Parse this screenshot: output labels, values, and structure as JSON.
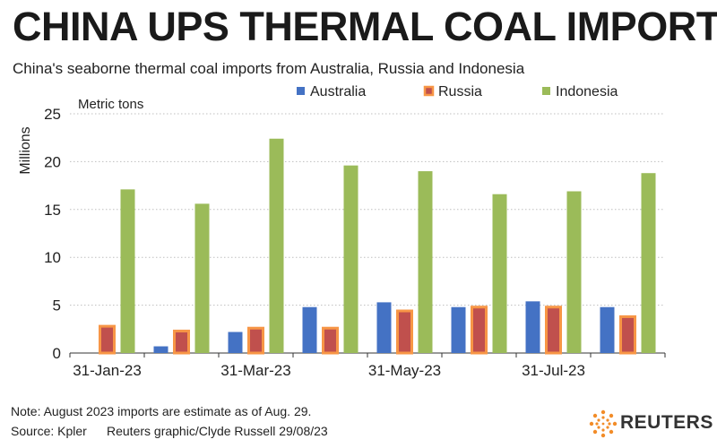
{
  "header": {
    "title": "CHINA UPS THERMAL COAL IMPORTS",
    "subtitle": "China's seaborne thermal coal imports from Australia, Russia and Indonesia"
  },
  "chart_data": {
    "type": "bar",
    "categories": [
      "Jan-23",
      "Feb-23",
      "Mar-23",
      "Apr-23",
      "May-23",
      "Jun-23",
      "Jul-23",
      "Aug-23"
    ],
    "x_tick_labels": [
      "31-Jan-23",
      "31-Mar-23",
      "31-May-23",
      "31-Jul-23"
    ],
    "series": [
      {
        "name": "Australia",
        "color": "#4472c4",
        "values": [
          0,
          0.7,
          2.2,
          4.8,
          5.3,
          4.8,
          5.4,
          4.8
        ]
      },
      {
        "name": "Russia",
        "color": "#c0504d",
        "edge": "#f79646",
        "values": [
          2.8,
          2.3,
          2.6,
          2.6,
          4.4,
          4.8,
          4.8,
          3.8
        ]
      },
      {
        "name": "Indonesia",
        "color": "#9bbb59",
        "values": [
          17.1,
          15.6,
          22.4,
          19.6,
          19.0,
          16.6,
          16.9,
          18.8
        ]
      }
    ],
    "ylim": [
      0,
      25
    ],
    "yticks": [
      0,
      5,
      10,
      15,
      20,
      25
    ],
    "ylabel": "Millions",
    "unit_label": "Metric tons",
    "legend_position": "top",
    "grid": "horizontal dotted"
  },
  "footer": {
    "note": "Note: August 2023 imports are estimate as of Aug. 29.",
    "source": "Source: Kpler",
    "credit": "Reuters graphic/Clyde Russell 29/08/23",
    "logo_text": "REUTERS"
  }
}
